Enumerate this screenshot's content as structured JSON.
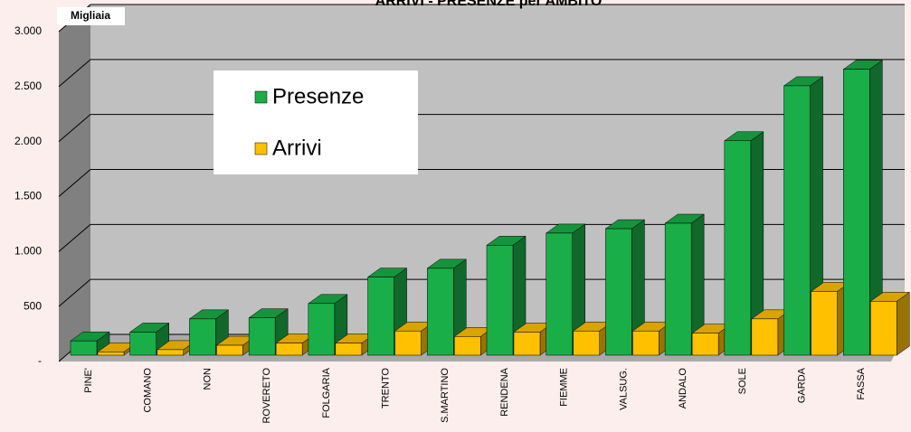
{
  "chart_data": {
    "type": "bar3d",
    "title": "ARRIVI - PRESENZE per AMBITO",
    "unit_label": "Migliaia",
    "categories": [
      "PINE'",
      "COMANO",
      "NON",
      "ROVERETO",
      "FOLGARIA",
      "TRENTO",
      "S.MARTINO",
      "RENDENA",
      "FIEMME",
      "VALSUG.",
      "ANDALO",
      "SOLE",
      "GARDA",
      "FASSA"
    ],
    "series": [
      {
        "name": "Presenze",
        "color": "#1aae48",
        "values": [
          130,
          210,
          330,
          340,
          470,
          710,
          790,
          1000,
          1110,
          1150,
          1200,
          1950,
          2450,
          2600
        ]
      },
      {
        "name": "Arrivi",
        "color": "#ffc000",
        "values": [
          30,
          50,
          90,
          110,
          110,
          220,
          170,
          210,
          220,
          220,
          200,
          330,
          580,
          490
        ]
      }
    ],
    "ylim": [
      0,
      3000
    ],
    "yticks": [
      {
        "value": 0,
        "label": "-"
      },
      500,
      {
        "value": 1000,
        "label": "1.000"
      },
      {
        "value": 1500,
        "label": "1.500"
      },
      {
        "value": 2000,
        "label": "2.000"
      },
      {
        "value": 2500,
        "label": "2.500"
      },
      {
        "value": 3000,
        "label": "3.000"
      }
    ],
    "grid": true
  }
}
